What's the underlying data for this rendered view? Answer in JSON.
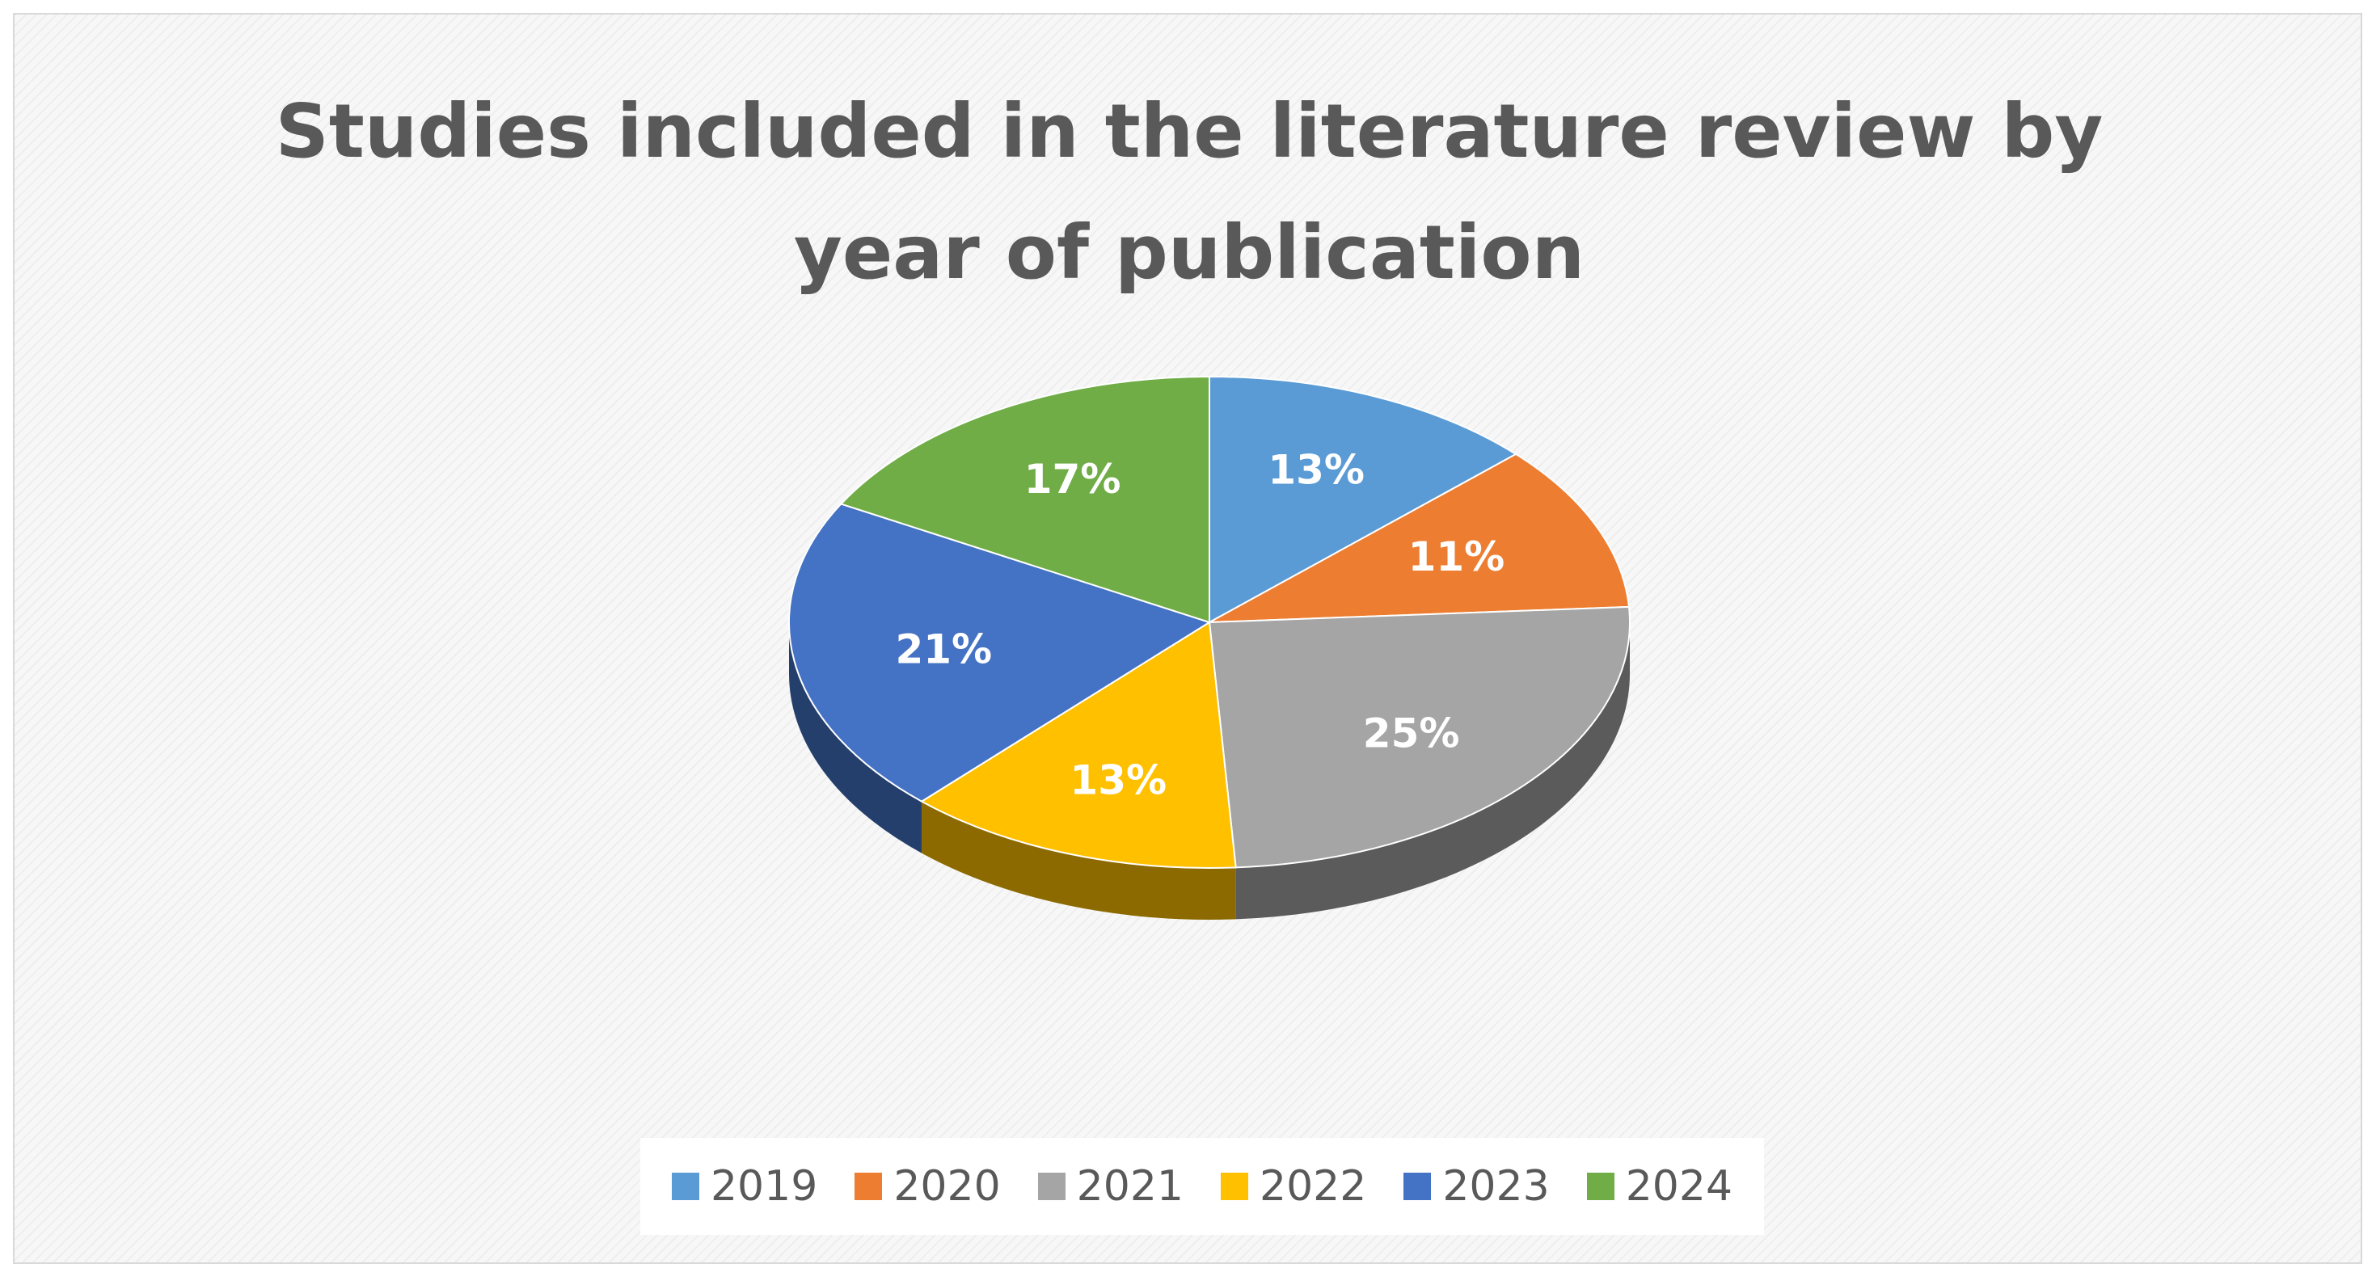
{
  "chart_data": {
    "type": "pie",
    "title_lines": [
      "Studies included in the literature review by",
      "year of publication"
    ],
    "categories": [
      "2019",
      "2020",
      "2021",
      "2022",
      "2023",
      "2024"
    ],
    "values": [
      13,
      11,
      25,
      13,
      21,
      17
    ],
    "labels": [
      "13%",
      "11%",
      "25%",
      "13%",
      "21%",
      "17%"
    ],
    "colors": [
      "#5b9bd5",
      "#ed7d31",
      "#a5a5a5",
      "#ffc000",
      "#4472c4",
      "#70ad47"
    ],
    "legend_position": "bottom",
    "style": "3d"
  }
}
